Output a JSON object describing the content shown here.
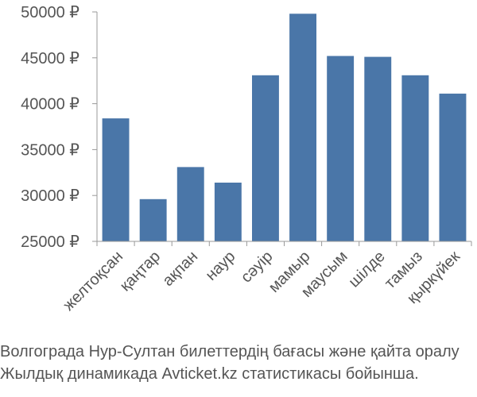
{
  "chart_data": {
    "type": "bar",
    "categories": [
      "желтоқсан",
      "қаңтар",
      "ақпан",
      "наур",
      "сәуір",
      "мамыр",
      "маусым",
      "шілде",
      "тамыз",
      "қыркүйек"
    ],
    "values": [
      38400,
      29600,
      33100,
      31400,
      43100,
      49800,
      45200,
      45100,
      43100,
      41100
    ],
    "ylim": [
      25000,
      50000
    ],
    "yticks": [
      "25000 ₽",
      "30000 ₽",
      "35000 ₽",
      "40000 ₽",
      "45000 ₽",
      "50000 ₽"
    ],
    "ytick_values": [
      25000,
      30000,
      35000,
      40000,
      45000,
      50000
    ],
    "bar_color": "#4a76a8",
    "grid": false
  },
  "caption": {
    "line1": "Волгограда Нур-Султан билеттердің бағасы және қайта оралу",
    "line2": "Жылдық динамикада Avticket.kz статистикасы бойынша."
  }
}
